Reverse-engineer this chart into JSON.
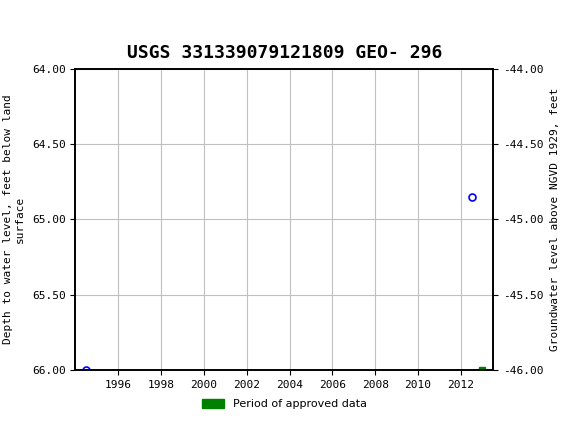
{
  "title": "USGS 331339079121809 GEO- 296",
  "ylabel_left": "Depth to water level, feet below land\nsurface",
  "ylabel_right": "Groundwater level above NGVD 1929, feet",
  "xlabel": "",
  "ylim_left": [
    64.0,
    66.0
  ],
  "ylim_right": [
    -44.0,
    -46.0
  ],
  "xlim": [
    1994.0,
    2013.5
  ],
  "xticks": [
    1996,
    1998,
    2000,
    2002,
    2004,
    2006,
    2008,
    2010,
    2012
  ],
  "yticks_left": [
    64.0,
    64.5,
    65.0,
    65.5,
    66.0
  ],
  "yticks_right": [
    -44.0,
    -44.5,
    -45.0,
    -45.5,
    -46.0
  ],
  "blue_points_x": [
    1994.5,
    2012.5
  ],
  "blue_points_y": [
    66.0,
    64.85
  ],
  "green_point_x": [
    2013.0
  ],
  "green_point_y": [
    66.0
  ],
  "header_color": "#1a6b3c",
  "grid_color": "#c0c0c0",
  "legend_label": "Period of approved data",
  "legend_color": "#008000",
  "bg_color": "#ffffff",
  "title_fontsize": 13,
  "axis_label_fontsize": 8,
  "tick_fontsize": 8
}
